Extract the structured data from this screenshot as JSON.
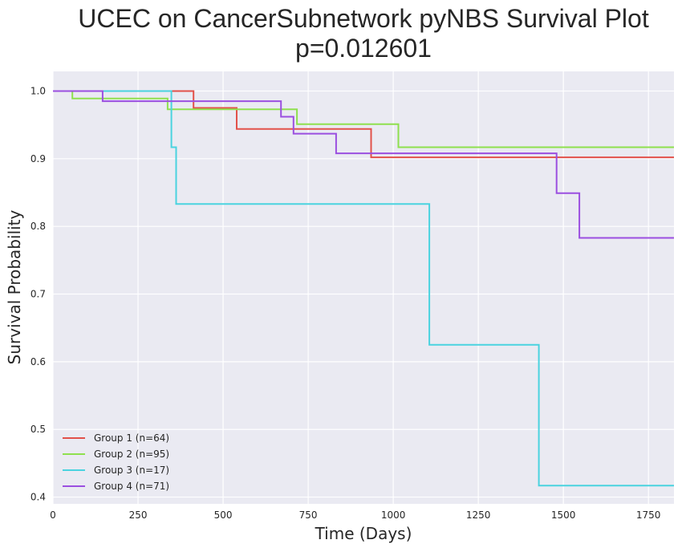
{
  "chart_data": {
    "type": "line",
    "title": "UCEC on CancerSubnetwork pyNBS Survival Plot",
    "subtitle": "p=0.012601",
    "xlabel": "Time (Days)",
    "ylabel": "Survival Probability",
    "xlim": [
      0,
      1825
    ],
    "ylim": [
      0.39,
      1.029
    ],
    "xticks": [
      0,
      250,
      500,
      750,
      1000,
      1250,
      1500,
      1750
    ],
    "xtick_labels": [
      "0",
      "250",
      "500",
      "750",
      "1000",
      "1250",
      "1500",
      "1750"
    ],
    "yticks": [
      0.4,
      0.5,
      0.6,
      0.7,
      0.8,
      0.9,
      1.0
    ],
    "ytick_labels": [
      "0.4",
      "0.5",
      "0.6",
      "0.7",
      "0.8",
      "0.9",
      "1.0"
    ],
    "grid": true,
    "background": "#eaeaf2",
    "legend_position": "lower-left",
    "series": [
      {
        "name": "Group 1 (n=64)",
        "color": "#e2514a",
        "x": [
          0,
          413,
          540,
          935,
          1825
        ],
        "y": [
          1.0,
          0.975,
          0.944,
          0.902,
          0.902
        ]
      },
      {
        "name": "Group 2 (n=95)",
        "color": "#8fe04e",
        "x": [
          0,
          57,
          337,
          717,
          1015,
          1825
        ],
        "y": [
          1.0,
          0.989,
          0.973,
          0.951,
          0.917,
          0.917
        ]
      },
      {
        "name": "Group 3 (n=17)",
        "color": "#4ad3df",
        "x": [
          0,
          348,
          362,
          1106,
          1428,
          1825
        ],
        "y": [
          1.0,
          0.917,
          0.833,
          0.625,
          0.417,
          0.417
        ]
      },
      {
        "name": "Group 4 (n=71)",
        "color": "#9b4fe0",
        "x": [
          0,
          146,
          670,
          707,
          832,
          1480,
          1547,
          1825
        ],
        "y": [
          1.0,
          0.985,
          0.962,
          0.937,
          0.908,
          0.849,
          0.783,
          0.783
        ]
      }
    ]
  }
}
